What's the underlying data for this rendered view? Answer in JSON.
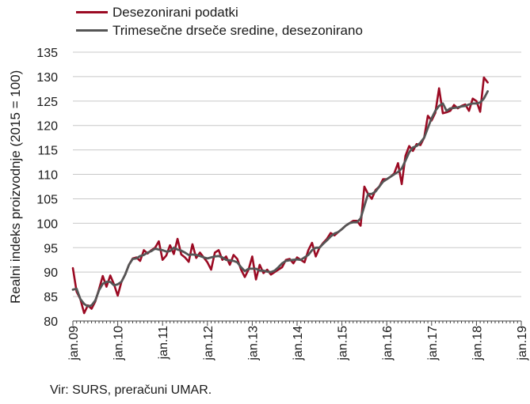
{
  "chart_data": {
    "type": "line",
    "ylabel": "Realni indeks proizvodnje (2015 = 100)",
    "ylim": [
      80,
      135
    ],
    "yticks": [
      80,
      85,
      90,
      95,
      100,
      105,
      110,
      115,
      120,
      125,
      130,
      135
    ],
    "xtick_labels": [
      "jan.09",
      "jan.10",
      "jan.11",
      "jan.12",
      "jan.13",
      "jan.14",
      "jan.15",
      "jan.16",
      "jan.17",
      "jan.18",
      "jan.19"
    ],
    "x_start": "2009-01",
    "x_frequency": "monthly",
    "grid": "horizontal",
    "legend_position": "top-left",
    "source": "Vir: SURS, preračuni UMAR.",
    "series": [
      {
        "name": "Desezonirani podatki",
        "color": "#9b0a23",
        "values": [
          90.8,
          86,
          84.5,
          81.6,
          83.2,
          82.5,
          84,
          86.5,
          89.2,
          87,
          89.3,
          87.5,
          85.2,
          88,
          89.5,
          91.5,
          92.8,
          93,
          92.3,
          94.5,
          93.8,
          94.5,
          95,
          96.3,
          92.5,
          93.4,
          95.5,
          93.7,
          96.8,
          93.6,
          93,
          92.1,
          95.7,
          92.9,
          94,
          93,
          92,
          90.5,
          94,
          94.5,
          92.5,
          93.2,
          91.5,
          93.5,
          92.7,
          90.5,
          89,
          90.5,
          93.2,
          88.5,
          91.5,
          89.8,
          90.5,
          89.5,
          90,
          90.5,
          91,
          92.5,
          92.7,
          91.8,
          93,
          92.5,
          92,
          94.5,
          96,
          93.2,
          95,
          96,
          96.8,
          98,
          97.5,
          98.2,
          98.8,
          99.5,
          100,
          100.5,
          100.5,
          99.5,
          107.5,
          106,
          105,
          106.8,
          107.5,
          109,
          109,
          109.5,
          110.2,
          112.3,
          108,
          113.8,
          115.8,
          114.8,
          116.2,
          116,
          117.5,
          122,
          121,
          122.6,
          127.6,
          122.5,
          122.7,
          123,
          124.2,
          123.5,
          124,
          124.3,
          123,
          125.5,
          125,
          122.8,
          129.8,
          128.8
        ]
      },
      {
        "name": "Trimesečne drseče sredine, desezonirano",
        "color": "#555555",
        "values": [
          86.4,
          86.6,
          84.5,
          83.5,
          83.0,
          83.2,
          84.2,
          86.3,
          87.6,
          88.0,
          88.0,
          87.3,
          87.5,
          88.0,
          89.5,
          91.5,
          92.7,
          92.8,
          93.3,
          93.5,
          94.0,
          94.3,
          94.8,
          94.6,
          94.5,
          94.2,
          94.3,
          95.0,
          94.6,
          94.4,
          94.0,
          93.5,
          93.6,
          93.5,
          93.3,
          93.0,
          92.8,
          93.0,
          93.2,
          93.3,
          93.0,
          92.5,
          92.4,
          92.3,
          92.0,
          91.0,
          90.2,
          90.7,
          90.7,
          90.7,
          90.3,
          90.3,
          90.1,
          90.0,
          90.3,
          91.0,
          91.8,
          92.3,
          92.4,
          92.5,
          92.6,
          92.5,
          93.0,
          93.5,
          94.5,
          95.0,
          95.0,
          95.8,
          96.5,
          97.3,
          97.9,
          98.2,
          98.8,
          99.5,
          100.0,
          100.2,
          100.2,
          101.0,
          103.5,
          106.0,
          106.0,
          106.5,
          107.5,
          108.5,
          109.0,
          109.5,
          110.0,
          110.5,
          111.2,
          112.8,
          114.5,
          115.5,
          115.8,
          116.5,
          117.5,
          119.5,
          121.5,
          123.0,
          124.0,
          124.5,
          123.0,
          123.5,
          123.6,
          123.7,
          123.9,
          124.0,
          124.3,
          124.5,
          124.5,
          124.7,
          125.5,
          127.0
        ]
      }
    ]
  }
}
